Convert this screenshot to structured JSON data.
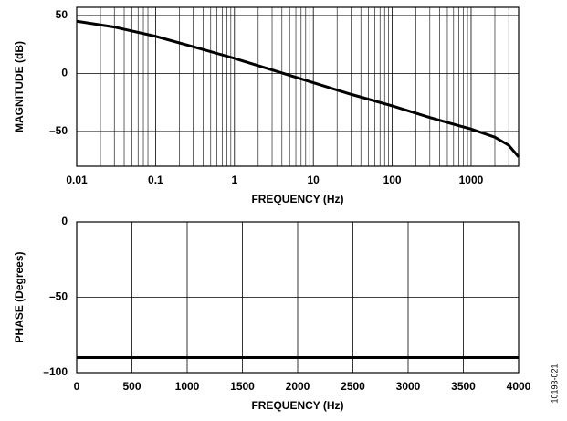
{
  "chart_data": [
    {
      "type": "line",
      "ylabel": "MAGNITUDE (dB)",
      "xlabel": "FREQUENCY (Hz)",
      "xscale": "log",
      "xlim": [
        0.01,
        4000
      ],
      "ylim": [
        -80,
        57
      ],
      "xticks": [
        0.01,
        0.1,
        1,
        10,
        100,
        1000
      ],
      "yticks": [
        50,
        0,
        {
          "value": -50,
          "label": "–50"
        }
      ],
      "grid": true,
      "minor_grid": true,
      "series": [
        {
          "color": "#000000",
          "x": [
            0.01,
            0.03,
            0.1,
            0.3,
            1,
            3,
            10,
            30,
            100,
            300,
            1000,
            2000,
            3000,
            4000
          ],
          "values": [
            45,
            40,
            32,
            23,
            13,
            3,
            -8,
            -18,
            -28,
            -38,
            -48,
            -55,
            -62,
            -72
          ]
        }
      ]
    },
    {
      "type": "line",
      "ylabel": "PHASE (Degrees)",
      "xlabel": "FREQUENCY (Hz)",
      "xlim": [
        0,
        4000
      ],
      "ylim": [
        -100,
        0
      ],
      "xticks": [
        0,
        500,
        1000,
        1500,
        2000,
        2500,
        3000,
        3500,
        4000
      ],
      "yticks": [
        0,
        {
          "value": -50,
          "label": "–50"
        },
        {
          "value": -100,
          "label": "–100"
        }
      ],
      "grid": true,
      "series": [
        {
          "color": "#000000",
          "x": [
            0,
            4000
          ],
          "values": [
            -90,
            -90
          ]
        }
      ]
    }
  ],
  "figure_id": "10193-021"
}
